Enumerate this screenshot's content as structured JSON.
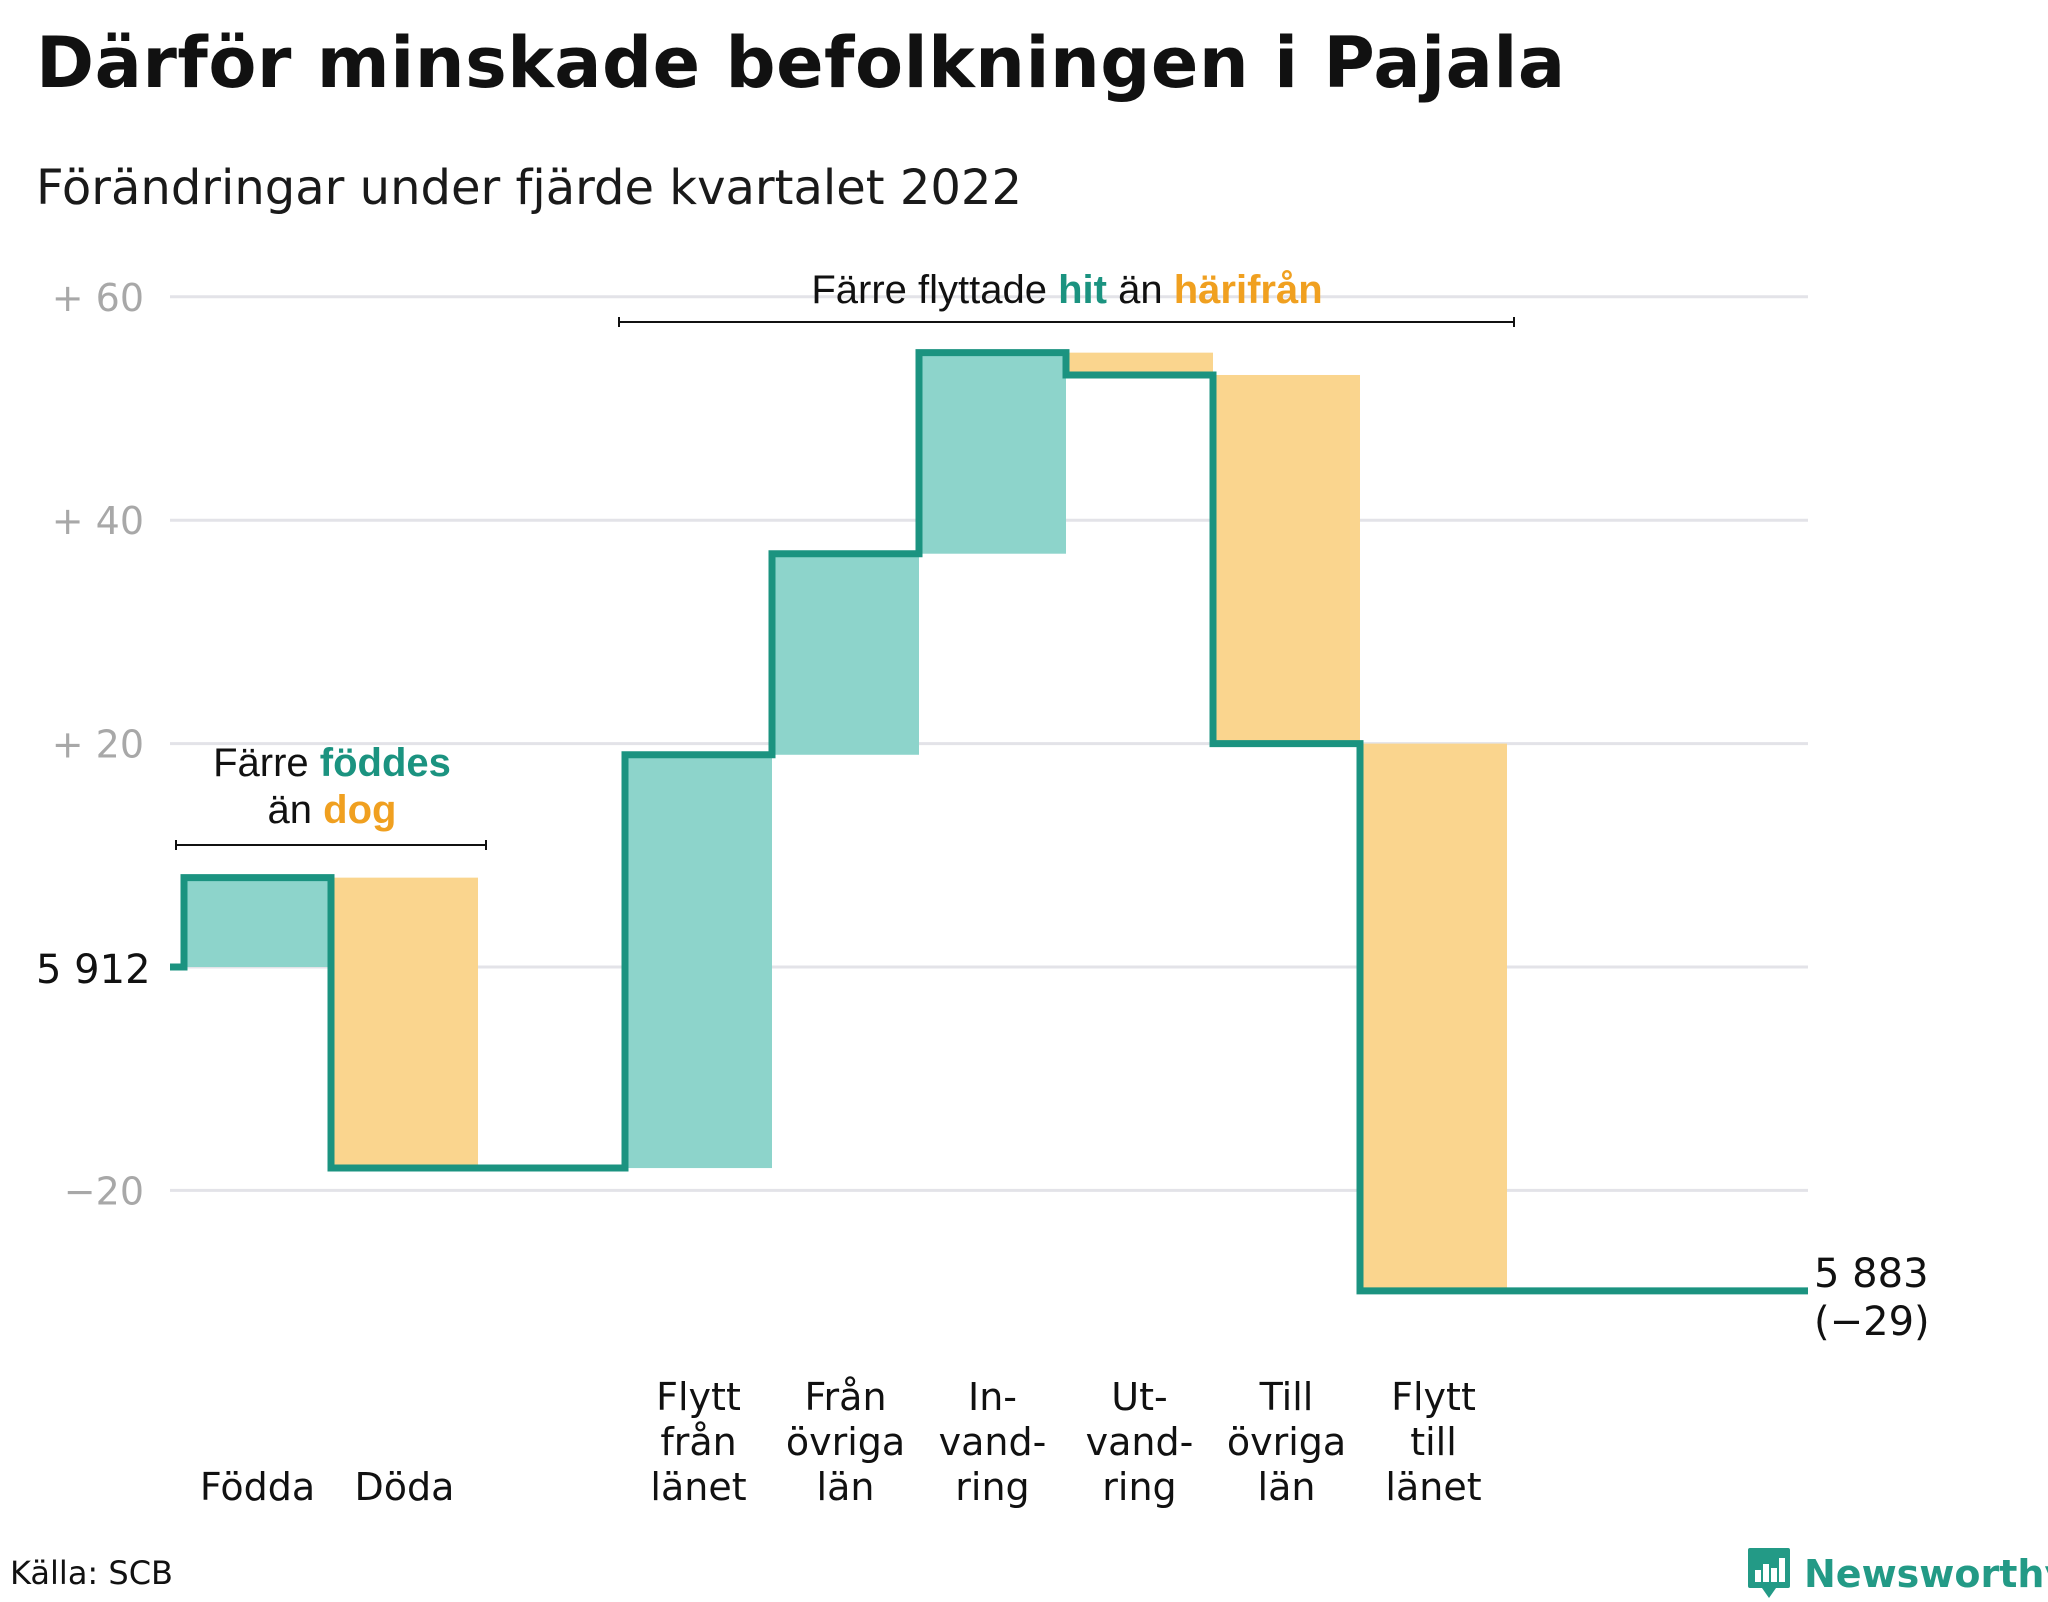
{
  "title": "Därför minskade befolkningen i Pajala",
  "subtitle": "Förändringar under fjärde kvartalet 2022",
  "source": "Källa: SCB",
  "brand": "Newsworthy",
  "colors": {
    "increase_fill": "#8dd4cb",
    "decrease_fill": "#fad58e",
    "line": "#1b9380",
    "accent_green": "#1b9380",
    "accent_orange": "#f0a020",
    "grid": "#e3e3e8",
    "tick": "#a8a8a8"
  },
  "chart_data": {
    "type": "waterfall",
    "start_value": 5912,
    "start_label": "5 912",
    "end_label": "5 883",
    "end_change_label": "(−29)",
    "y_axis": {
      "range": [
        -25,
        62
      ],
      "ticks": [
        -20,
        20,
        40,
        60
      ],
      "tick_labels": [
        "−20",
        "+ 20",
        "+ 40",
        "+ 60"
      ]
    },
    "grid": true,
    "categories": [
      {
        "label": [
          "Födda"
        ],
        "change": 8
      },
      {
        "label": [
          "Döda"
        ],
        "change": -26
      },
      {
        "label": [
          ""
        ],
        "change": 0
      },
      {
        "label": [
          "Flytt",
          "från",
          "länet"
        ],
        "change": 37
      },
      {
        "label": [
          "Från",
          "övriga",
          "län"
        ],
        "change": 18
      },
      {
        "label": [
          "In-",
          "vand-",
          "ring"
        ],
        "change": 18
      },
      {
        "label": [
          "Ut-",
          "vand-",
          "ring"
        ],
        "change": -2
      },
      {
        "label": [
          "Till",
          "övriga",
          "län"
        ],
        "change": -33
      },
      {
        "label": [
          "Flytt",
          "till",
          "länet"
        ],
        "change": -49
      }
    ],
    "annotations": [
      {
        "lines": [
          [
            [
              "Färre ",
              "plain"
            ],
            [
              "föddes",
              "green"
            ]
          ],
          [
            [
              "än ",
              "plain"
            ],
            [
              "dog",
              "orange"
            ]
          ]
        ]
      },
      {
        "lines": [
          [
            [
              "Färre flyttade ",
              "plain"
            ],
            [
              "hit",
              "green"
            ],
            [
              " än ",
              "plain"
            ],
            [
              "härifrån",
              "orange"
            ]
          ]
        ]
      }
    ]
  }
}
